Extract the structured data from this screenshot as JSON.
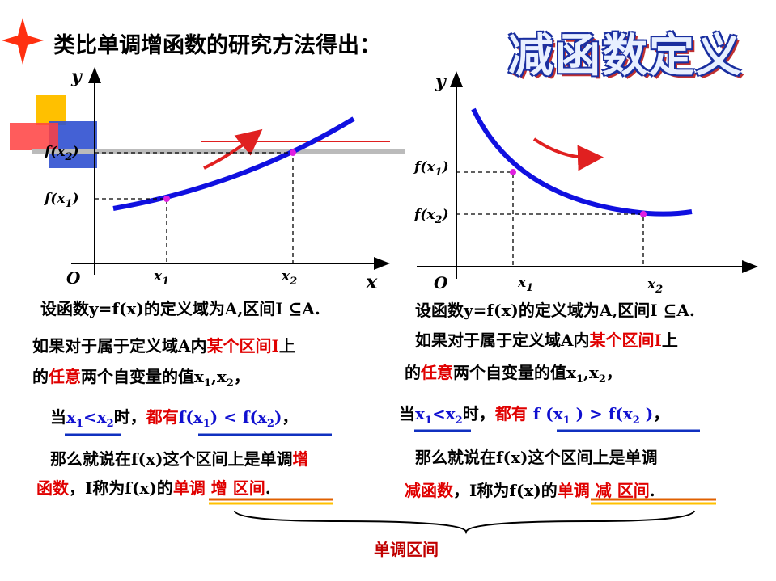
{
  "title": "类比单调增函数的研究方法得出：",
  "banner": "减函数定义",
  "left_graph": {
    "y_axis": "y",
    "x_axis": "x",
    "origin": "O",
    "x1": [
      {
        "text": "x"
      },
      {
        "text": "1",
        "sub": true
      }
    ],
    "x2": [
      {
        "text": "x"
      },
      {
        "text": "2",
        "sub": true
      }
    ],
    "fx1": [
      {
        "text": "f(x"
      },
      {
        "text": "1",
        "sub": true
      },
      {
        "text": ")"
      }
    ],
    "fx2": [
      {
        "text": "f(x"
      },
      {
        "text": "2",
        "sub": true
      },
      {
        "text": ")"
      }
    ]
  },
  "right_graph": {
    "y_axis": "y",
    "origin": "O",
    "x1": [
      {
        "text": "x"
      },
      {
        "text": "1",
        "sub": true
      }
    ],
    "x2": [
      {
        "text": "x"
      },
      {
        "text": "2",
        "sub": true
      }
    ],
    "fx1": [
      {
        "text": "f(x"
      },
      {
        "text": "1",
        "sub": true
      },
      {
        "text": ")"
      }
    ],
    "fx2": [
      {
        "text": "f(x"
      },
      {
        "text": "2",
        "sub": true
      },
      {
        "text": ")"
      }
    ]
  },
  "left": {
    "lines": [
      {
        "runs": [
          {
            "text": "设函数y=f(x)的定义域为A,区间I ⊆A."
          }
        ]
      },
      {
        "runs": [
          {
            "text": "如果对于属于定义域A内"
          },
          {
            "text": "某个区间I",
            "color": "red"
          },
          {
            "text": "上"
          }
        ]
      },
      {
        "runs": [
          {
            "text": "的"
          },
          {
            "text": "任意",
            "color": "red"
          },
          {
            "text": "两个自变量的值x"
          },
          {
            "text": "1",
            "sub": true
          },
          {
            "text": ",x"
          },
          {
            "text": "2",
            "sub": true
          },
          {
            "text": "，"
          }
        ]
      },
      {
        "runs": [
          {
            "text": "当"
          },
          {
            "text": "x",
            "color": "blue"
          },
          {
            "text": "1",
            "sub": true,
            "color": "blue"
          },
          {
            "text": "<x",
            "color": "blue"
          },
          {
            "text": "2",
            "sub": true,
            "color": "blue"
          },
          {
            "text": "时，"
          },
          {
            "text": "都有",
            "color": "red"
          },
          {
            "text": "f(x",
            "color": "blue"
          },
          {
            "text": "1",
            "sub": true,
            "color": "blue"
          },
          {
            "text": ") < f(x",
            "color": "blue"
          },
          {
            "text": "2",
            "sub": true,
            "color": "blue"
          },
          {
            "text": ")",
            "color": "blue"
          },
          {
            "text": "，"
          }
        ]
      },
      {
        "runs": [
          {
            "text": "那么就说在f(x)这个区间上是单调"
          },
          {
            "text": "增",
            "color": "red"
          }
        ]
      },
      {
        "runs": [
          {
            "text": "函数",
            "color": "red"
          },
          {
            "text": "，I称为f(x)的"
          },
          {
            "text": "单调 增 区间",
            "color": "red"
          },
          {
            "text": "."
          }
        ]
      }
    ]
  },
  "right": {
    "lines": [
      {
        "runs": [
          {
            "text": "设函数y=f(x)的定义域为A,区间I ⊆A."
          }
        ]
      },
      {
        "runs": [
          {
            "text": "如果对于属于定义域A内"
          },
          {
            "text": "某个区间I",
            "color": "red"
          },
          {
            "text": "上"
          }
        ]
      },
      {
        "runs": [
          {
            "text": "的"
          },
          {
            "text": "任意",
            "color": "red"
          },
          {
            "text": "两个自变量的值x"
          },
          {
            "text": "1",
            "sub": true
          },
          {
            "text": ",x"
          },
          {
            "text": "2",
            "sub": true
          },
          {
            "text": "，"
          }
        ]
      },
      {
        "runs": [
          {
            "text": "当"
          },
          {
            "text": "x",
            "color": "blue"
          },
          {
            "text": "1",
            "sub": true,
            "color": "blue"
          },
          {
            "text": "<x",
            "color": "blue"
          },
          {
            "text": "2",
            "sub": true,
            "color": "blue"
          },
          {
            "text": "时，"
          },
          {
            "text": "都有 ",
            "color": "red"
          },
          {
            "text": "f (x",
            "color": "blue"
          },
          {
            "text": "1",
            "sub": true,
            "color": "blue"
          },
          {
            "text": " ) > f(x",
            "color": "blue"
          },
          {
            "text": "2",
            "sub": true,
            "color": "blue"
          },
          {
            "text": " )",
            "color": "blue"
          },
          {
            "text": "，"
          }
        ]
      },
      {
        "runs": [
          {
            "text": "那么就说在f(x)这个区间上是单调"
          }
        ]
      },
      {
        "runs": [
          {
            "text": "减函数",
            "color": "red"
          },
          {
            "text": "，I称为f(x)的"
          },
          {
            "text": "单调 减 区间",
            "color": "red"
          },
          {
            "text": "."
          }
        ]
      }
    ]
  },
  "footer": "单调区间"
}
